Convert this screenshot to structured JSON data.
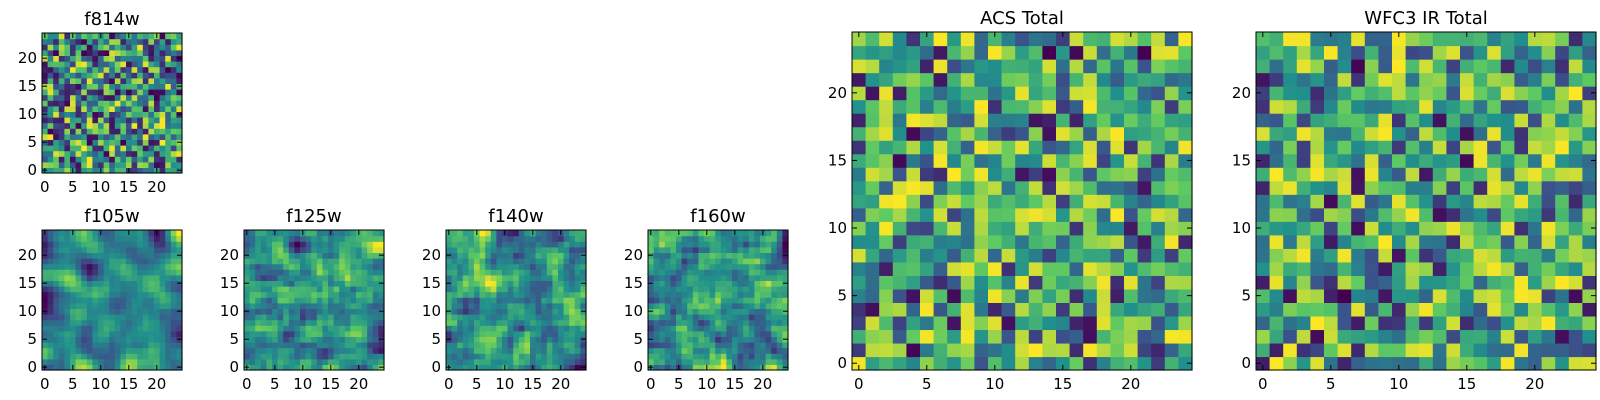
{
  "chart_data": [
    {
      "type": "heatmap",
      "title": "f814w",
      "size": 25,
      "seed": 11,
      "smooth": 0,
      "contrast": 1.0,
      "xticks": [
        0,
        5,
        10,
        15,
        20
      ],
      "yticks": [
        0,
        5,
        10,
        15,
        20
      ],
      "colormap": [
        "#440154",
        "#3b528b",
        "#21918c",
        "#5ec962",
        "#fde725"
      ]
    },
    {
      "type": "heatmap",
      "title": "f105w",
      "size": 25,
      "seed": 23,
      "smooth": 2,
      "contrast": 1.0,
      "xticks": [
        0,
        5,
        10,
        15,
        20
      ],
      "yticks": [
        0,
        5,
        10,
        15,
        20
      ],
      "colormap": [
        "#440154",
        "#3b528b",
        "#21918c",
        "#5ec962",
        "#fde725"
      ]
    },
    {
      "type": "heatmap",
      "title": "f125w",
      "size": 25,
      "seed": 37,
      "smooth": 1,
      "contrast": 1.0,
      "xticks": [
        0,
        5,
        10,
        15,
        20
      ],
      "yticks": [
        0,
        5,
        10,
        15,
        20
      ],
      "colormap": [
        "#440154",
        "#3b528b",
        "#21918c",
        "#5ec962",
        "#fde725"
      ]
    },
    {
      "type": "heatmap",
      "title": "f140w",
      "size": 25,
      "seed": 41,
      "smooth": 1,
      "contrast": 1.0,
      "xticks": [
        0,
        5,
        10,
        15,
        20
      ],
      "yticks": [
        0,
        5,
        10,
        15,
        20
      ],
      "colormap": [
        "#440154",
        "#3b528b",
        "#21918c",
        "#5ec962",
        "#fde725"
      ]
    },
    {
      "type": "heatmap",
      "title": "f160w",
      "size": 25,
      "seed": 53,
      "smooth": 1,
      "contrast": 1.0,
      "xticks": [
        0,
        5,
        10,
        15,
        20
      ],
      "yticks": [
        0,
        5,
        10,
        15,
        20
      ],
      "colormap": [
        "#440154",
        "#3b528b",
        "#21918c",
        "#5ec962",
        "#fde725"
      ]
    },
    {
      "type": "heatmap",
      "title": "ACS Total",
      "size": 25,
      "seed": 67,
      "smooth": 0,
      "contrast": 0.7,
      "xticks": [
        0,
        5,
        10,
        15,
        20
      ],
      "yticks": [
        0,
        5,
        10,
        15,
        20
      ],
      "colormap": [
        "#440154",
        "#3b528b",
        "#21918c",
        "#5ec962",
        "#fde725"
      ]
    },
    {
      "type": "heatmap",
      "title": "WFC3 IR Total",
      "size": 25,
      "seed": 79,
      "smooth": 0,
      "contrast": 0.7,
      "xticks": [
        0,
        5,
        10,
        15,
        20
      ],
      "yticks": [
        0,
        5,
        10,
        15,
        20
      ],
      "colormap": [
        "#440154",
        "#3b528b",
        "#21918c",
        "#5ec962",
        "#fde725"
      ]
    }
  ]
}
